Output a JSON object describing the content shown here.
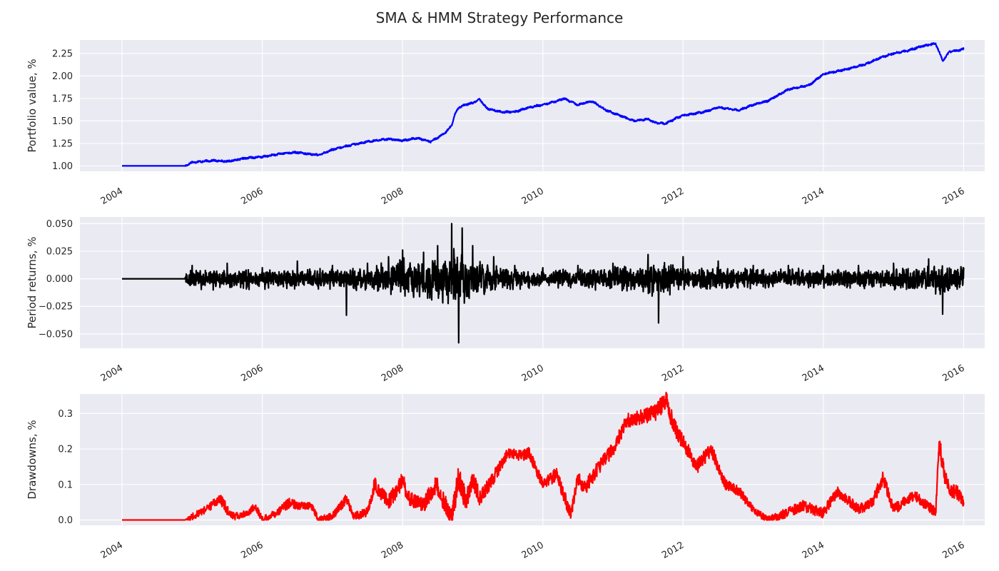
{
  "figure": {
    "title": "SMA & HMM Strategy Performance"
  },
  "colors": {
    "plot_background": "#eaeaf2",
    "grid": "#ffffff",
    "text": "#262626",
    "portfolio": "#0000ff",
    "returns": "#000000",
    "drawdowns": "#ff0000"
  },
  "chart_data": [
    {
      "type": "line",
      "title": "",
      "xlabel": "",
      "ylabel": "Portfolio value, %",
      "xlim": [
        2003.4,
        2016.3
      ],
      "ylim": [
        0.94,
        2.4
      ],
      "x_ticks": [
        "2004",
        "2006",
        "2008",
        "2010",
        "2012",
        "2014",
        "2016"
      ],
      "y_ticks": [
        "1.00",
        "1.25",
        "1.50",
        "1.75",
        "2.00",
        "2.25"
      ],
      "grid": true,
      "series": [
        {
          "color": "#0000ff",
          "x": [
            2004.0,
            2004.9,
            2005.0,
            2005.3,
            2005.5,
            2005.8,
            2006.0,
            2006.3,
            2006.5,
            2006.8,
            2007.0,
            2007.2,
            2007.5,
            2007.8,
            2008.0,
            2008.2,
            2008.4,
            2008.6,
            2008.7,
            2008.75,
            2008.8,
            2008.9,
            2009.0,
            2009.1,
            2009.2,
            2009.4,
            2009.6,
            2009.8,
            2010.0,
            2010.2,
            2010.3,
            2010.5,
            2010.7,
            2010.9,
            2011.1,
            2011.3,
            2011.5,
            2011.6,
            2011.75,
            2011.9,
            2012.0,
            2012.3,
            2012.5,
            2012.8,
            2013.0,
            2013.2,
            2013.5,
            2013.8,
            2014.0,
            2014.3,
            2014.6,
            2014.8,
            2015.0,
            2015.2,
            2015.4,
            2015.6,
            2015.65,
            2015.7,
            2015.8,
            2015.9,
            2016.0
          ],
          "y": [
            1.0,
            1.0,
            1.04,
            1.06,
            1.05,
            1.09,
            1.1,
            1.14,
            1.15,
            1.12,
            1.18,
            1.22,
            1.27,
            1.3,
            1.28,
            1.31,
            1.27,
            1.36,
            1.45,
            1.58,
            1.65,
            1.68,
            1.7,
            1.74,
            1.64,
            1.6,
            1.6,
            1.65,
            1.68,
            1.72,
            1.75,
            1.68,
            1.72,
            1.62,
            1.56,
            1.5,
            1.52,
            1.48,
            1.47,
            1.53,
            1.56,
            1.6,
            1.65,
            1.62,
            1.68,
            1.72,
            1.85,
            1.9,
            2.02,
            2.07,
            2.13,
            2.2,
            2.25,
            2.28,
            2.33,
            2.36,
            2.27,
            2.17,
            2.27,
            2.28,
            2.3
          ]
        }
      ]
    },
    {
      "type": "line",
      "title": "",
      "xlabel": "",
      "ylabel": "Period returns, %",
      "xlim": [
        2003.4,
        2016.3
      ],
      "ylim": [
        -0.063,
        0.056
      ],
      "x_ticks": [
        "2004",
        "2006",
        "2008",
        "2010",
        "2012",
        "2014",
        "2016"
      ],
      "y_ticks": [
        "0.050",
        "0.025",
        "0.000",
        "−0.025",
        "−0.050"
      ],
      "grid": true,
      "series": [
        {
          "color": "#000000",
          "x": [
            2004.0,
            2004.8,
            2005.0,
            2005.5,
            2006.0,
            2006.5,
            2007.0,
            2007.2,
            2007.5,
            2007.8,
            2008.0,
            2008.3,
            2008.5,
            2008.7,
            2008.8,
            2008.85,
            2009.0,
            2009.3,
            2009.6,
            2010.0,
            2010.5,
            2011.0,
            2011.5,
            2011.65,
            2012.0,
            2012.5,
            2013.0,
            2013.5,
            2014.0,
            2014.5,
            2015.0,
            2015.5,
            2015.7,
            2016.0
          ],
          "y": [
            0.0,
            0.0,
            0.012,
            0.014,
            0.01,
            0.016,
            0.012,
            -0.033,
            0.014,
            0.02,
            0.026,
            0.024,
            0.03,
            0.05,
            -0.058,
            0.046,
            0.03,
            0.02,
            0.012,
            0.01,
            0.012,
            0.014,
            0.022,
            -0.04,
            0.02,
            0.016,
            0.012,
            0.012,
            0.012,
            0.012,
            0.014,
            0.018,
            -0.032,
            0.01
          ],
          "envelope": [
            0.0,
            0.0,
            0.01,
            0.012,
            0.01,
            0.011,
            0.011,
            0.012,
            0.013,
            0.016,
            0.02,
            0.018,
            0.022,
            0.03,
            0.035,
            0.028,
            0.02,
            0.014,
            0.01,
            0.009,
            0.01,
            0.011,
            0.016,
            0.02,
            0.012,
            0.011,
            0.01,
            0.01,
            0.009,
            0.01,
            0.011,
            0.013,
            0.016,
            0.011
          ]
        }
      ]
    },
    {
      "type": "line",
      "title": "",
      "xlabel": "",
      "ylabel": "Drawdowns, %",
      "xlim": [
        2003.4,
        2016.3
      ],
      "ylim": [
        -0.015,
        0.355
      ],
      "x_ticks": [
        "2004",
        "2006",
        "2008",
        "2010",
        "2012",
        "2014",
        "2016"
      ],
      "y_ticks": [
        "0.3",
        "0.2",
        "0.1",
        "0.0"
      ],
      "grid": true,
      "series": [
        {
          "color": "#ff0000",
          "x": [
            2004.0,
            2004.9,
            2005.0,
            2005.2,
            2005.4,
            2005.5,
            2005.6,
            2005.8,
            2005.9,
            2006.0,
            2006.2,
            2006.4,
            2006.5,
            2006.7,
            2006.8,
            2007.0,
            2007.2,
            2007.3,
            2007.5,
            2007.6,
            2007.8,
            2008.0,
            2008.1,
            2008.3,
            2008.4,
            2008.5,
            2008.7,
            2008.8,
            2008.9,
            2009.0,
            2009.1,
            2009.3,
            2009.5,
            2009.7,
            2009.8,
            2010.0,
            2010.2,
            2010.4,
            2010.5,
            2010.6,
            2010.8,
            2011.0,
            2011.2,
            2011.4,
            2011.6,
            2011.75,
            2011.9,
            2012.0,
            2012.2,
            2012.4,
            2012.6,
            2012.8,
            2013.0,
            2013.2,
            2013.5,
            2013.7,
            2014.0,
            2014.2,
            2014.5,
            2014.7,
            2014.85,
            2015.0,
            2015.3,
            2015.6,
            2015.65,
            2015.7,
            2015.8,
            2015.9,
            2016.0
          ],
          "y": [
            0.0,
            0.0,
            0.01,
            0.03,
            0.06,
            0.03,
            0.01,
            0.02,
            0.04,
            0.0,
            0.02,
            0.05,
            0.04,
            0.04,
            0.0,
            0.01,
            0.06,
            0.01,
            0.02,
            0.1,
            0.05,
            0.11,
            0.06,
            0.04,
            0.08,
            0.1,
            0.0,
            0.13,
            0.05,
            0.12,
            0.06,
            0.12,
            0.19,
            0.18,
            0.19,
            0.1,
            0.13,
            0.01,
            0.12,
            0.09,
            0.15,
            0.2,
            0.28,
            0.29,
            0.3,
            0.34,
            0.25,
            0.22,
            0.15,
            0.2,
            0.1,
            0.08,
            0.03,
            0.0,
            0.02,
            0.04,
            0.02,
            0.08,
            0.03,
            0.05,
            0.12,
            0.03,
            0.07,
            0.02,
            0.22,
            0.15,
            0.08,
            0.08,
            0.05
          ],
          "envelope": [
            0.0,
            0.0,
            0.01,
            0.01,
            0.015,
            0.015,
            0.01,
            0.01,
            0.01,
            0.01,
            0.01,
            0.015,
            0.01,
            0.01,
            0.01,
            0.01,
            0.015,
            0.01,
            0.015,
            0.02,
            0.02,
            0.025,
            0.02,
            0.02,
            0.025,
            0.03,
            0.03,
            0.04,
            0.03,
            0.03,
            0.02,
            0.02,
            0.015,
            0.015,
            0.015,
            0.015,
            0.02,
            0.02,
            0.02,
            0.02,
            0.02,
            0.02,
            0.02,
            0.02,
            0.025,
            0.03,
            0.025,
            0.02,
            0.02,
            0.02,
            0.015,
            0.015,
            0.01,
            0.01,
            0.015,
            0.015,
            0.015,
            0.015,
            0.015,
            0.015,
            0.02,
            0.015,
            0.015,
            0.015,
            0.03,
            0.03,
            0.02,
            0.02,
            0.015
          ]
        }
      ]
    }
  ]
}
